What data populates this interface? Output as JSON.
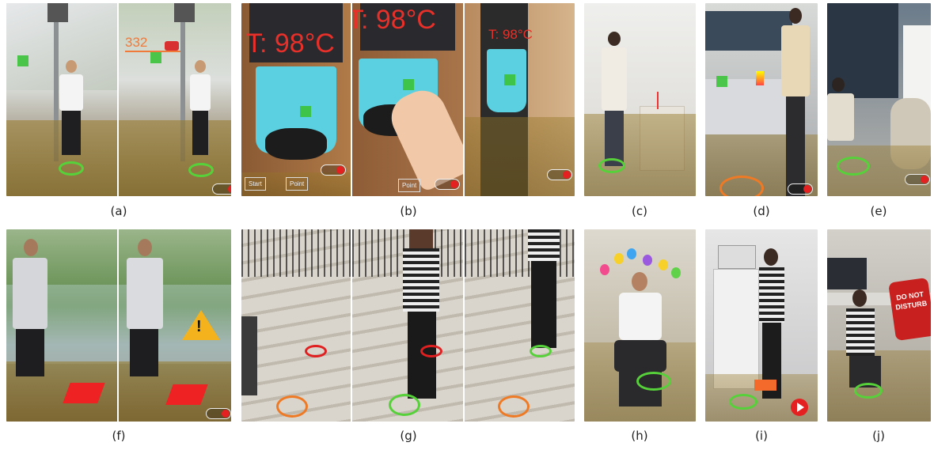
{
  "panels": [
    {
      "id": "a",
      "caption": "(a)",
      "overlay_text": "332"
    },
    {
      "id": "b",
      "caption": "(b)",
      "overlay_text": "T: 98°C",
      "buttons": [
        "Start",
        "Point"
      ]
    },
    {
      "id": "c",
      "caption": "(c)"
    },
    {
      "id": "d",
      "caption": "(d)"
    },
    {
      "id": "e",
      "caption": "(e)"
    },
    {
      "id": "f",
      "caption": "(f)"
    },
    {
      "id": "g",
      "caption": "(g)"
    },
    {
      "id": "h",
      "caption": "(h)"
    },
    {
      "id": "i",
      "caption": "(i)"
    },
    {
      "id": "j",
      "caption": "(j)",
      "sign_text": "DO NOT DISTURB"
    }
  ],
  "colors": {
    "ar_green": "#3cc23a",
    "ar_ring_green": "#57d13a",
    "ar_ring_orange": "#ef7a25",
    "ar_floor": "#9a7a2a",
    "temp_red": "#e8302a",
    "kiosk_cyan": "#5ad0e0"
  }
}
